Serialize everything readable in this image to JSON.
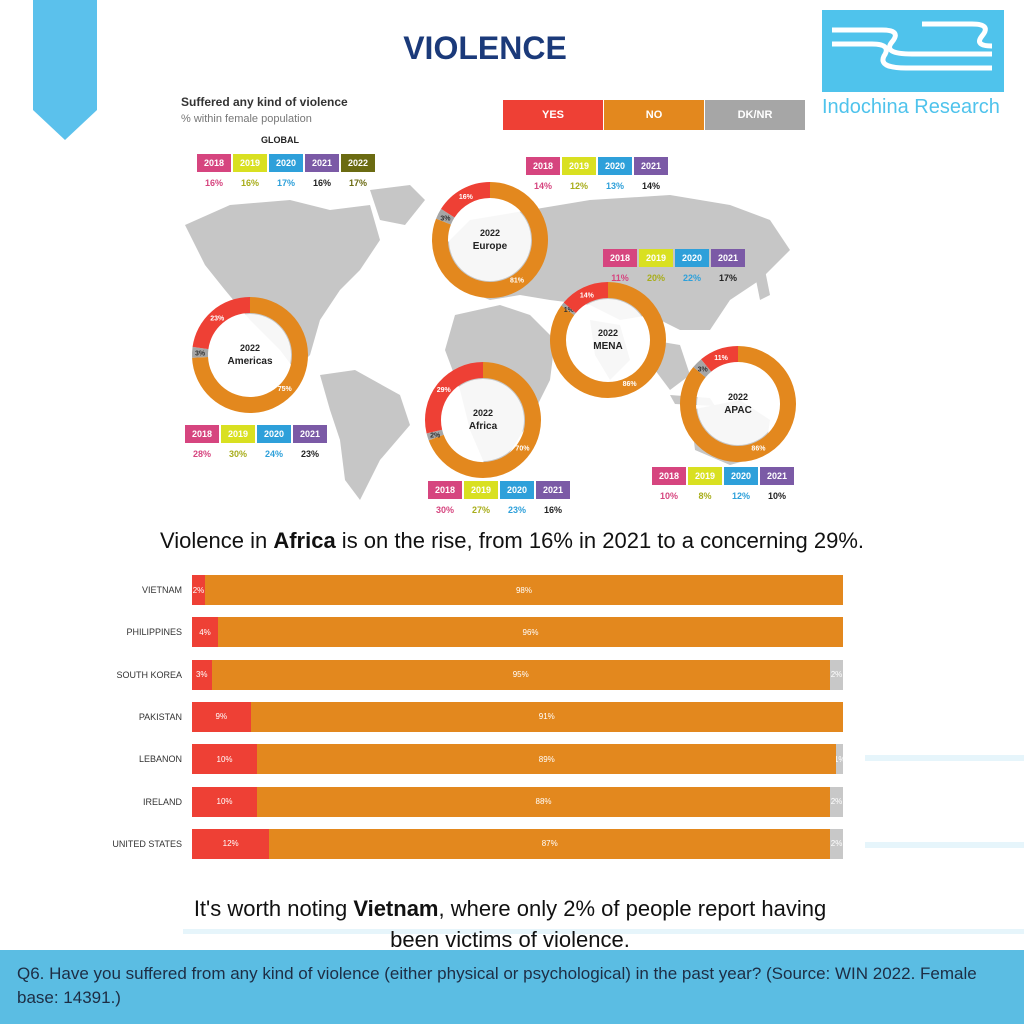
{
  "title": "VIOLENCE",
  "logo_text": "Indochina Research",
  "legend": [
    {
      "label": "YES",
      "color": "#ee4035"
    },
    {
      "label": "NO",
      "color": "#e3881e"
    },
    {
      "label": "DK/NR",
      "color": "#a6a6a6"
    }
  ],
  "year_colors": {
    "2018": "#d6457f",
    "2019": "#d9e021",
    "2020": "#2ea0da",
    "2021": "#7b5aa6",
    "2022": "#6b6b12"
  },
  "chart_data": [
    {
      "type": "pie",
      "title": "Suffered any kind of violence",
      "subtitle": "% within female population",
      "global": {
        "label": "GLOBAL",
        "years": [
          "2018",
          "2019",
          "2020",
          "2021",
          "2022"
        ],
        "values": [
          "16%",
          "16%",
          "17%",
          "16%",
          "17%"
        ],
        "value_colors": [
          "#d6457f",
          "#a8ad1a",
          "#2ea0da",
          "#222222",
          "#6b6b12"
        ]
      },
      "regions": [
        {
          "year": "2022",
          "name": "Europe",
          "yes": 16,
          "no": 81,
          "dk": 3,
          "yes_label": "16%",
          "no_label": "81%",
          "dk_label": "3%",
          "history_years": [
            "2018",
            "2019",
            "2020",
            "2021"
          ],
          "history": [
            "14%",
            "12%",
            "13%",
            "14%"
          ]
        },
        {
          "year": "2022",
          "name": "MENA",
          "yes": 14,
          "no": 86,
          "dk": 1,
          "yes_label": "14%",
          "no_label": "86%",
          "dk_label": "1%",
          "history_years": [
            "2018",
            "2019",
            "2020",
            "2021"
          ],
          "history": [
            "11%",
            "20%",
            "22%",
            "17%"
          ]
        },
        {
          "year": "2022",
          "name": "Americas",
          "yes": 23,
          "no": 75,
          "dk": 3,
          "yes_label": "23%",
          "no_label": "75%",
          "dk_label": "3%",
          "history_years": [
            "2018",
            "2019",
            "2020",
            "2021"
          ],
          "history": [
            "28%",
            "30%",
            "24%",
            "23%"
          ]
        },
        {
          "year": "2022",
          "name": "Africa",
          "yes": 29,
          "no": 70,
          "dk": 2,
          "yes_label": "29%",
          "no_label": "70%",
          "dk_label": "2%",
          "history_years": [
            "2018",
            "2019",
            "2020",
            "2021"
          ],
          "history": [
            "30%",
            "27%",
            "23%",
            "16%"
          ]
        },
        {
          "year": "2022",
          "name": "APAC",
          "yes": 11,
          "no": 86,
          "dk": 3,
          "yes_label": "11%",
          "no_label": "86%",
          "dk_label": "3%",
          "history_years": [
            "2018",
            "2019",
            "2020",
            "2021"
          ],
          "history": [
            "10%",
            "8%",
            "12%",
            "10%"
          ]
        }
      ]
    },
    {
      "type": "bar",
      "orientation": "horizontal",
      "stacked": true,
      "categories": [
        "VIETNAM",
        "PHILIPPINES",
        "SOUTH KOREA",
        "PAKISTAN",
        "LEBANON",
        "IRELAND",
        "UNITED STATES"
      ],
      "series": [
        {
          "name": "YES",
          "values": [
            2,
            4,
            3,
            9,
            10,
            10,
            12
          ],
          "labels": [
            "2%",
            "4%",
            "3%",
            "9%",
            "10%",
            "10%",
            "12%"
          ]
        },
        {
          "name": "NO",
          "values": [
            98,
            96,
            95,
            91,
            89,
            88,
            87
          ],
          "labels": [
            "98%",
            "96%",
            "95%",
            "91%",
            "89%",
            "88%",
            "87%"
          ]
        },
        {
          "name": "DK/NR",
          "values": [
            0,
            0,
            2,
            0,
            1,
            2,
            2
          ],
          "labels": [
            "",
            "",
            "2%",
            "",
            "1%",
            "2%",
            "2%"
          ]
        }
      ]
    }
  ],
  "text": {
    "sentence1_pre": "Violence in ",
    "sentence1_bold": "Africa",
    "sentence1_post": " is on the rise, from 16% in 2021 to a concerning 29%.",
    "sentence2_pre": "It's worth noting ",
    "sentence2_bold": "Vietnam",
    "sentence2_post": ", where only 2% of people report having been victims of violence.",
    "footer": "Q6. Have you suffered from any kind of violence (either physical or psychological) in the past year? (Source: WIN 2022. Female base: 14391.)"
  }
}
